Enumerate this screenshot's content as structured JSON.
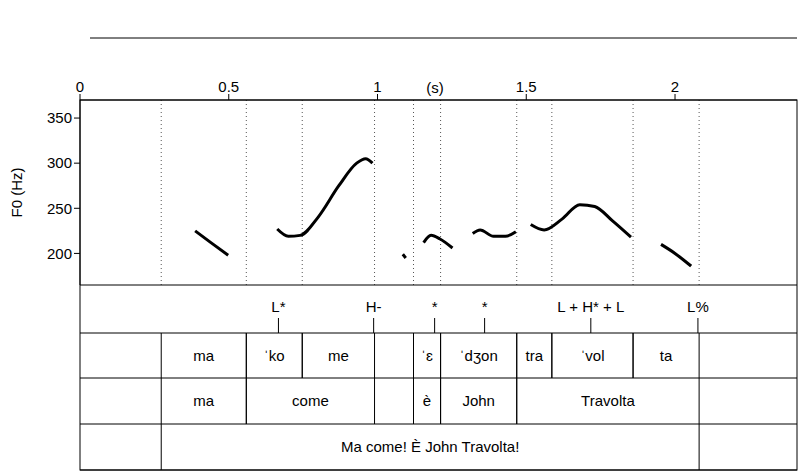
{
  "chart_data": {
    "type": "line",
    "x_label": "(s)",
    "y_label": "F0 (Hz)",
    "xlim": [
      0,
      2.41
    ],
    "xticks": [
      0,
      0.5,
      1,
      1.5,
      2
    ],
    "ylim": [
      165,
      370
    ],
    "yticks": [
      200,
      250,
      300,
      350
    ],
    "color": "#000000",
    "line_style": "solid",
    "x": [
      0.387,
      0.44,
      0.498,
      0.58,
      0.663,
      0.7,
      0.74,
      0.8,
      0.87,
      0.93,
      0.96,
      0.983,
      1.03,
      1.085,
      1.095,
      1.12,
      1.155,
      1.18,
      1.21,
      1.252,
      1.29,
      1.32,
      1.345,
      1.39,
      1.43,
      1.465,
      1.49,
      1.515,
      1.56,
      1.62,
      1.68,
      1.73,
      1.79,
      1.852,
      1.9,
      1.953,
      2.0,
      2.054
    ],
    "values": [
      225,
      212,
      198,
      null,
      227,
      219,
      220,
      240,
      275,
      300,
      305,
      300,
      null,
      199,
      195,
      null,
      212,
      220,
      216,
      206,
      null,
      222,
      226,
      219,
      219,
      224,
      null,
      232,
      226,
      238,
      254,
      252,
      236,
      218,
      null,
      210,
      200,
      186
    ],
    "tone_tier": [
      {
        "time": 0.667,
        "label": "L*"
      },
      {
        "time": 0.987,
        "label": "H-"
      },
      {
        "time": 1.192,
        "label": "*"
      },
      {
        "time": 1.36,
        "label": "*"
      },
      {
        "time": 1.717,
        "label": "L + H* + L"
      },
      {
        "time": 2.077,
        "label": "L%"
      }
    ],
    "interval_tiers": [
      [
        {
          "start": 0.273,
          "end": 0.559,
          "label": "ma"
        },
        {
          "start": 0.559,
          "end": 0.747,
          "label": "ˈko"
        },
        {
          "start": 0.747,
          "end": 0.99,
          "label": "me"
        },
        {
          "start": 1.121,
          "end": 1.212,
          "label": "ˈɛ"
        },
        {
          "start": 1.212,
          "end": 1.468,
          "label": "ˈdʒon"
        },
        {
          "start": 1.468,
          "end": 1.586,
          "label": "tra"
        },
        {
          "start": 1.586,
          "end": 1.859,
          "label": "ˈvol"
        },
        {
          "start": 1.859,
          "end": 2.081,
          "label": "ta"
        }
      ],
      [
        {
          "start": 0.273,
          "end": 0.559,
          "label": "ma"
        },
        {
          "start": 0.559,
          "end": 0.99,
          "label": "come"
        },
        {
          "start": 1.121,
          "end": 1.212,
          "label": "è"
        },
        {
          "start": 1.212,
          "end": 1.468,
          "label": "John"
        },
        {
          "start": 1.468,
          "end": 2.081,
          "label": "Travolta"
        }
      ],
      [
        {
          "start": 0.273,
          "end": 2.081,
          "label": "Ma come! È John Travolta!"
        }
      ]
    ]
  }
}
